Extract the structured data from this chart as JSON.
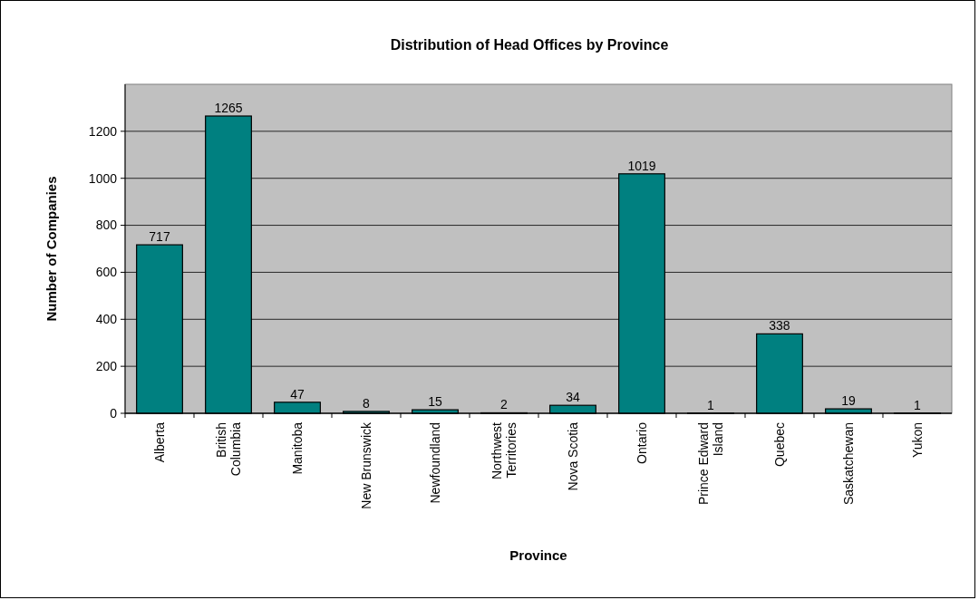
{
  "chart_data": {
    "type": "bar",
    "title": "Distribution of Head Offices by Province",
    "xlabel": "Province",
    "ylabel": "Number of Companies",
    "categories": [
      "Alberta",
      "British Columbia",
      "Manitoba",
      "New Brunswick",
      "Newfoundland",
      "Northwest Territories",
      "Nova Scotia",
      "Ontario",
      "Prince Edward Island",
      "Quebec",
      "Saskatchewan",
      "Yukon"
    ],
    "values": [
      717,
      1265,
      47,
      8,
      15,
      2,
      34,
      1019,
      1,
      338,
      19,
      1
    ],
    "color": "#008080",
    "ylim": [
      0,
      1400
    ],
    "yticks": [
      0,
      200,
      400,
      600,
      800,
      1000,
      1200
    ],
    "grid": "y",
    "data_labels": true
  }
}
